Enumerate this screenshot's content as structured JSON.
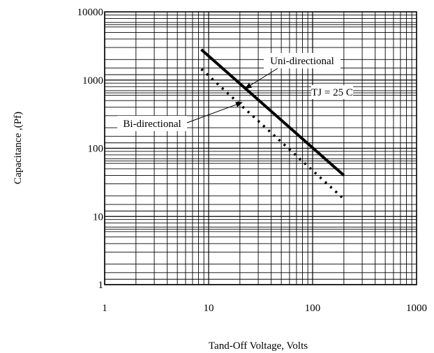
{
  "chart_data": {
    "type": "line",
    "title": "",
    "xlabel": "Tand-Off Voltage, Volts",
    "ylabel": "Capacitance ,(Pf)",
    "xscale": "log",
    "yscale": "log",
    "xlim": [
      1,
      1000
    ],
    "ylim": [
      1,
      10000
    ],
    "x_ticks": [
      "1",
      "10",
      "100",
      "1000"
    ],
    "y_ticks": [
      "1",
      "10",
      "100",
      "1000",
      "10000"
    ],
    "grid": true,
    "series": [
      {
        "name": "Uni-directional",
        "style": "solid",
        "color": "#000000",
        "x": [
          8.5,
          200
        ],
        "y": [
          2800,
          40
        ]
      },
      {
        "name": "Bi-directional",
        "style": "dotted",
        "color": "#000000",
        "x": [
          8.5,
          200
        ],
        "y": [
          1450,
          18
        ]
      }
    ],
    "annotations": [
      {
        "text": "Uni-directional",
        "arrow_to": [
          22.5,
          750
        ]
      },
      {
        "text": "Bi-directional",
        "arrow_to": [
          21,
          470
        ]
      },
      {
        "text": "TJ = 25 C"
      }
    ]
  }
}
